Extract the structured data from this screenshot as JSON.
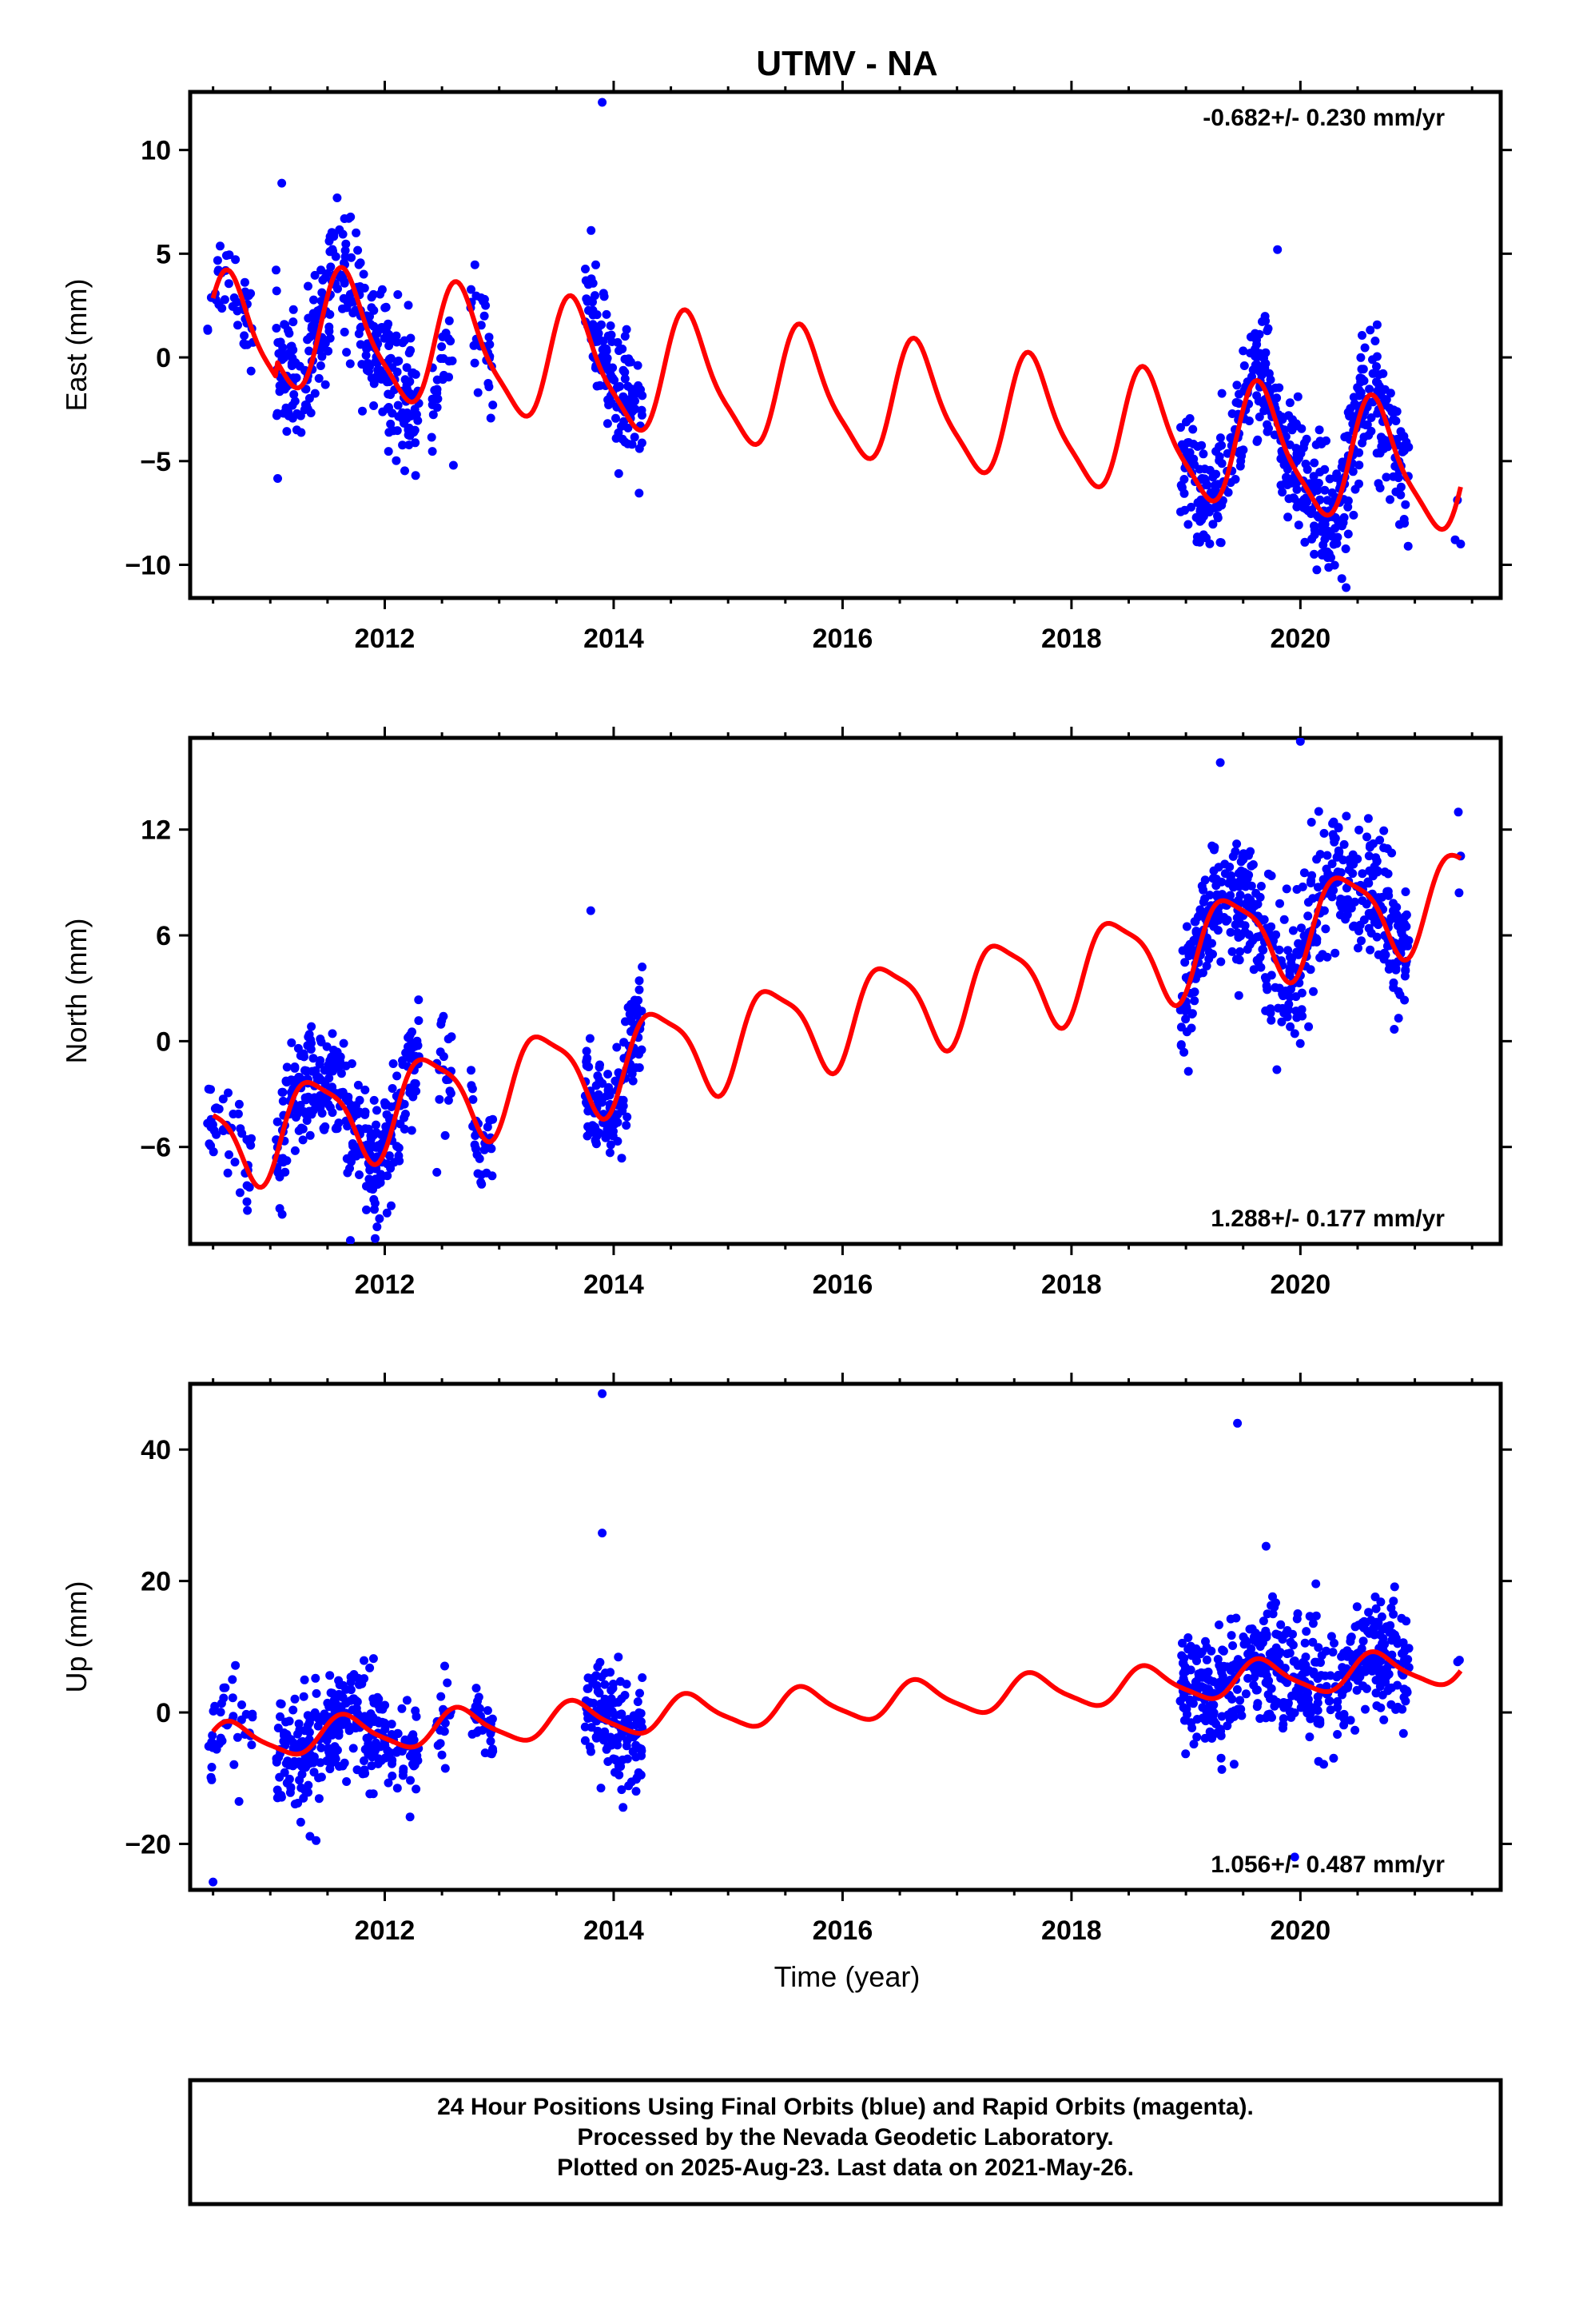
{
  "figure": {
    "title": "UTMV - NA",
    "xlabel": "Time (year)",
    "footer": {
      "line1": "24 Hour Positions Using Final Orbits (blue) and Rapid Orbits (magenta).",
      "line2": "Processed by the Nevada Geodetic Laboratory.",
      "line3": "Plotted on 2025-Aug-23. Last data on 2021-May-26."
    }
  },
  "chart_data": [
    {
      "type": "scatter",
      "panel": "east",
      "ylabel": "East (mm)",
      "xlim": [
        2010.3,
        2021.75
      ],
      "ylim": [
        -11.6,
        12.8
      ],
      "xticks": [
        2012,
        2014,
        2016,
        2018,
        2020
      ],
      "yticks": [
        -10,
        -5,
        0,
        5,
        10
      ],
      "ytick_labels": [
        "−10",
        "−5",
        "0",
        "5",
        "10"
      ],
      "rate": "-0.682+/- 0.230 mm/yr",
      "rate_position": "top-right",
      "colors": {
        "points": "#0000ff",
        "model": "#ff0000"
      },
      "data_segments": [
        {
          "start": 2010.45,
          "end": 2010.85,
          "n": 40,
          "spread": 1.2
        },
        {
          "start": 2011.05,
          "end": 2012.3,
          "n": 320,
          "spread": 1.6
        },
        {
          "start": 2012.4,
          "end": 2012.6,
          "n": 25,
          "spread": 1.0,
          "offset": -3.0
        },
        {
          "start": 2012.75,
          "end": 2012.95,
          "n": 30,
          "spread": 1.2
        },
        {
          "start": 2013.75,
          "end": 2014.25,
          "n": 140,
          "spread": 1.5,
          "offset": 0.8
        },
        {
          "start": 2018.95,
          "end": 2020.95,
          "n": 520,
          "spread": 1.5
        },
        {
          "start": 2021.35,
          "end": 2021.4,
          "n": 2,
          "spread": 3.5
        }
      ],
      "model": {
        "t0": 2010.5,
        "intercept": 1.8,
        "slope": -0.682,
        "annual": [
          2.4,
          1.5
        ],
        "semiannual": [
          0.55,
          0.35
        ],
        "offsets": [
          {
            "t": 2011.05,
            "v": 0.8
          }
        ]
      },
      "outliers": [
        [
          2013.9,
          12.3
        ],
        [
          2011.1,
          8.4
        ],
        [
          2019.8,
          5.2
        ],
        [
          2020.4,
          -11.1
        ],
        [
          2021.4,
          -9.0
        ],
        [
          2012.6,
          -5.2
        ]
      ]
    },
    {
      "type": "scatter",
      "panel": "north",
      "ylabel": "North (mm)",
      "xlim": [
        2010.3,
        2021.75
      ],
      "ylim": [
        -11.5,
        17.2
      ],
      "xticks": [
        2012,
        2014,
        2016,
        2018,
        2020
      ],
      "yticks": [
        -6,
        0,
        6,
        12
      ],
      "ytick_labels": [
        "−6",
        "0",
        "6",
        "12"
      ],
      "rate": "1.288+/- 0.177 mm/yr",
      "rate_position": "bottom-right",
      "colors": {
        "points": "#0000ff",
        "model": "#ff0000"
      },
      "data_segments": [
        {
          "start": 2010.45,
          "end": 2010.85,
          "n": 40,
          "spread": 1.6
        },
        {
          "start": 2011.05,
          "end": 2012.3,
          "n": 320,
          "spread": 1.6
        },
        {
          "start": 2012.45,
          "end": 2012.6,
          "n": 20,
          "spread": 1.8
        },
        {
          "start": 2012.75,
          "end": 2012.95,
          "n": 30,
          "spread": 1.3
        },
        {
          "start": 2013.75,
          "end": 2014.25,
          "n": 140,
          "spread": 1.5
        },
        {
          "start": 2018.95,
          "end": 2020.95,
          "n": 520,
          "spread": 2.0
        },
        {
          "start": 2021.35,
          "end": 2021.4,
          "n": 2,
          "spread": 3.0
        }
      ],
      "model": {
        "t0": 2010.5,
        "intercept": -5.7,
        "slope": 1.288,
        "annual": [
          -1.6,
          2.0
        ],
        "semiannual": [
          0.4,
          -0.5
        ],
        "offsets": []
      },
      "outliers": [
        [
          2013.8,
          7.4
        ],
        [
          2019.3,
          15.8
        ],
        [
          2020.0,
          17.0
        ],
        [
          2011.7,
          -11.3
        ],
        [
          2021.4,
          10.5
        ],
        [
          2010.8,
          -9.6
        ]
      ]
    },
    {
      "type": "scatter",
      "panel": "up",
      "ylabel": "Up (mm)",
      "xlim": [
        2010.3,
        2021.75
      ],
      "ylim": [
        -27,
        50
      ],
      "xticks": [
        2012,
        2014,
        2016,
        2018,
        2020
      ],
      "yticks": [
        -20,
        0,
        20,
        40
      ],
      "ytick_labels": [
        "−20",
        "0",
        "20",
        "40"
      ],
      "rate": "1.056+/- 0.487 mm/yr",
      "rate_position": "bottom-right",
      "colors": {
        "points": "#0000ff",
        "model": "#ff0000"
      },
      "data_segments": [
        {
          "start": 2010.45,
          "end": 2010.85,
          "n": 40,
          "spread": 3.5
        },
        {
          "start": 2011.05,
          "end": 2012.3,
          "n": 320,
          "spread": 4.0
        },
        {
          "start": 2012.45,
          "end": 2012.6,
          "n": 20,
          "spread": 4.0
        },
        {
          "start": 2012.75,
          "end": 2012.95,
          "n": 30,
          "spread": 3.0
        },
        {
          "start": 2013.75,
          "end": 2014.25,
          "n": 140,
          "spread": 4.0
        },
        {
          "start": 2018.95,
          "end": 2020.95,
          "n": 520,
          "spread": 4.5
        },
        {
          "start": 2021.35,
          "end": 2021.4,
          "n": 2,
          "spread": 4.0
        }
      ],
      "model": {
        "t0": 2010.5,
        "intercept": -4.5,
        "slope": 1.056,
        "annual": [
          2.3,
          1.3
        ],
        "semiannual": [
          0.5,
          0.3
        ],
        "offsets": []
      },
      "outliers": [
        [
          2013.9,
          48.5
        ],
        [
          2013.9,
          27.3
        ],
        [
          2019.45,
          44.0
        ],
        [
          2010.5,
          -25.8
        ],
        [
          2019.95,
          -22.0
        ],
        [
          2011.4,
          -19.5
        ],
        [
          2019.7,
          25.3
        ]
      ]
    }
  ]
}
